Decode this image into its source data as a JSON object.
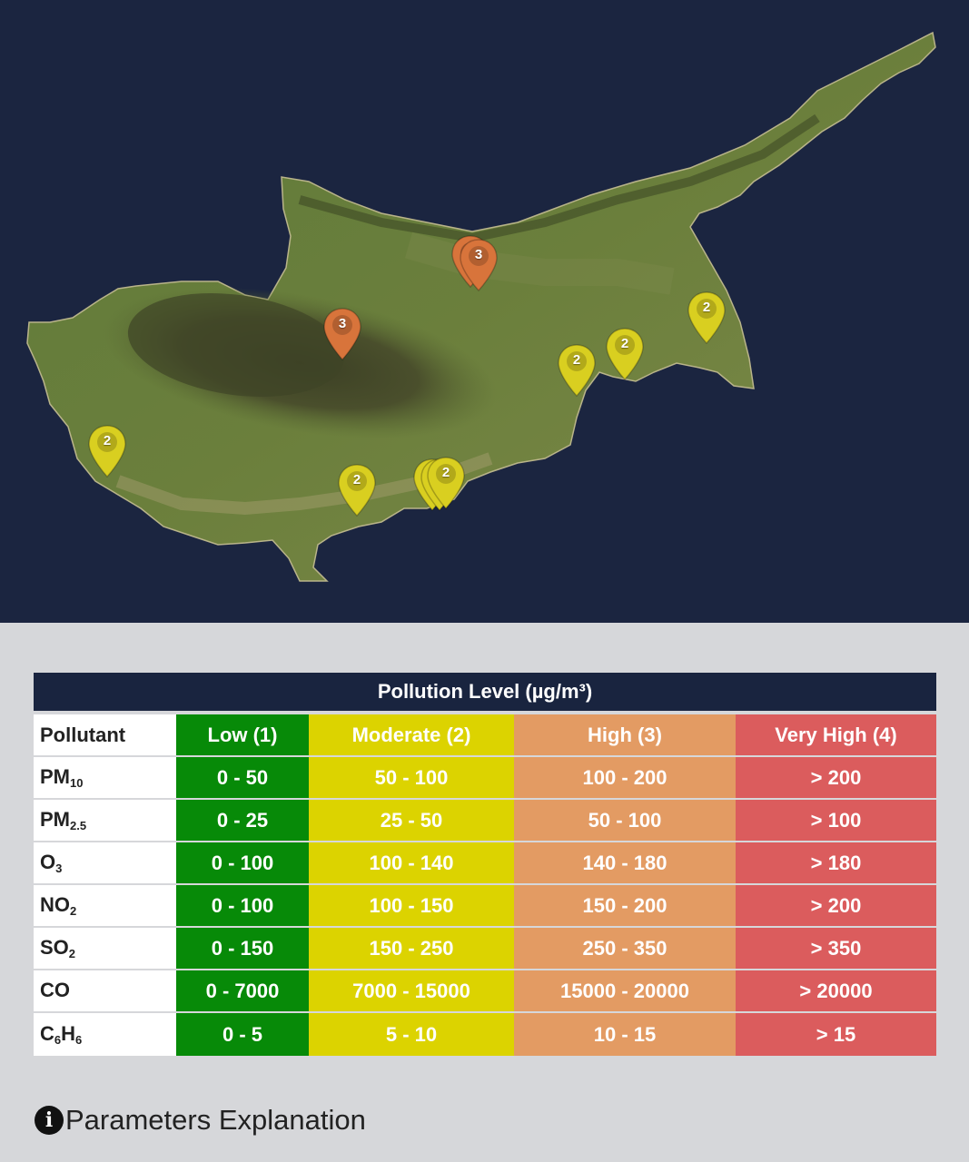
{
  "map": {
    "background": "#1b2540",
    "markers": [
      {
        "label": "3",
        "level": "high"
      },
      {
        "label": "3",
        "level": "high"
      },
      {
        "label": "3",
        "level": "high"
      },
      {
        "label": "2",
        "level": "moderate"
      },
      {
        "label": "2",
        "level": "moderate"
      },
      {
        "label": "2",
        "level": "moderate"
      },
      {
        "label": "2",
        "level": "moderate"
      },
      {
        "label": "2",
        "level": "moderate"
      },
      {
        "label": "2",
        "level": "moderate"
      },
      {
        "label": "2",
        "level": "moderate"
      },
      {
        "label": "2",
        "level": "moderate"
      }
    ],
    "marker_colors": {
      "high": "#d8743b",
      "moderate": "#d9cf20"
    }
  },
  "legend": {
    "title": "Pollution Level (µg/m³)",
    "headers": {
      "pollutant": "Pollutant",
      "low": "Low (1)",
      "moderate": "Moderate (2)",
      "high": "High (3)",
      "very_high": "Very High (4)"
    },
    "rows": [
      {
        "name": "PM",
        "sub": "10",
        "low": "0 - 50",
        "moderate": "50 - 100",
        "high": "100 - 200",
        "very_high": "> 200"
      },
      {
        "name": "PM",
        "sub": "2.5",
        "low": "0 - 25",
        "moderate": "25 - 50",
        "high": "50 - 100",
        "very_high": "> 100"
      },
      {
        "name": "O",
        "sub": "3",
        "low": "0 - 100",
        "moderate": "100 - 140",
        "high": "140 - 180",
        "very_high": "> 180"
      },
      {
        "name": "NO",
        "sub": "2",
        "low": "0 - 100",
        "moderate": "100 - 150",
        "high": "150 - 200",
        "very_high": "> 200"
      },
      {
        "name": "SO",
        "sub": "2",
        "low": "0 - 150",
        "moderate": "150 - 250",
        "high": "250 - 350",
        "very_high": "> 350"
      },
      {
        "name": "CO",
        "sub": "",
        "low": "0 - 7000",
        "moderate": "7000 - 15000",
        "high": "15000 - 20000",
        "very_high": "> 20000"
      },
      {
        "name": "C",
        "sub": "6",
        "name2": "H",
        "sub2": "6",
        "low": "0 - 5",
        "moderate": "5 - 10",
        "high": "10 - 15",
        "very_high": "> 15"
      }
    ],
    "colors": {
      "low": "#078a08",
      "moderate": "#dcd300",
      "high": "#e39b63",
      "very_high": "#db5c5d",
      "header": "#19243f"
    }
  },
  "parameters_link": {
    "icon": "info-circle-icon",
    "label": "Parameters Explanation"
  }
}
